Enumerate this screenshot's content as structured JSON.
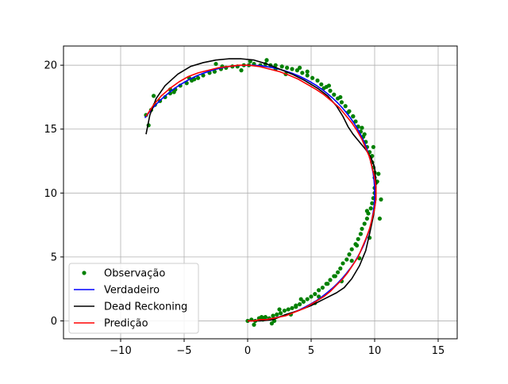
{
  "chart_data": {
    "type": "line",
    "title": "",
    "xlabel": "",
    "ylabel": "",
    "xlim": [
      -14.5,
      16.5
    ],
    "ylim": [
      -1.4,
      21.5
    ],
    "grid": true,
    "x_ticks": [
      -10,
      -5,
      0,
      5,
      10,
      15
    ],
    "y_ticks": [
      0,
      5,
      10,
      15,
      20
    ],
    "x_tick_labels": [
      "−10",
      "−5",
      "0",
      "5",
      "10",
      "15"
    ],
    "y_tick_labels": [
      "0",
      "5",
      "10",
      "15",
      "20"
    ],
    "legend_position": "lower-left",
    "colors": {
      "observation": "#008000",
      "true": "#0000ff",
      "dead_reckoning": "#000000",
      "prediction": "#ff0000"
    },
    "circle_model": {
      "center": [
        0,
        10
      ],
      "radius": 10,
      "start_angle_deg": -90,
      "end_angle_deg": 144
    },
    "series": [
      {
        "name": "Observação",
        "style": "markers",
        "color": "#008000",
        "x": [
          0.0,
          0.3,
          0.6,
          0.9,
          1.2,
          1.4,
          1.7,
          2.0,
          2.3,
          2.6,
          2.9,
          3.2,
          3.5,
          3.8,
          4.1,
          4.4,
          4.7,
          5.0,
          5.3,
          5.6,
          5.9,
          6.2,
          6.5,
          6.8,
          7.1,
          7.3,
          7.5,
          7.8,
          8.0,
          8.2,
          8.5,
          8.7,
          8.9,
          9.0,
          9.2,
          9.4,
          9.5,
          9.7,
          9.8,
          9.9,
          10.0,
          10.0,
          10.1,
          10.0,
          10.0,
          9.9,
          9.8,
          9.7,
          9.6,
          9.4,
          9.3,
          9.1,
          8.9,
          8.7,
          8.5,
          8.3,
          8.0,
          7.7,
          7.4,
          7.1,
          6.8,
          6.5,
          6.2,
          5.8,
          5.5,
          5.1,
          4.7,
          4.3,
          3.9,
          3.5,
          3.1,
          2.7,
          2.2,
          1.8,
          1.4,
          1.0,
          0.5,
          0.1,
          -0.3,
          -0.8,
          -1.2,
          -1.7,
          -2.1,
          -2.6,
          -3.0,
          -3.5,
          -3.9,
          -4.4,
          -4.8,
          -5.3,
          -5.7,
          -6.1,
          -6.5,
          -6.9,
          -7.3,
          -7.6,
          -8.0,
          0.5,
          1.1,
          1.9,
          2.5,
          3.4,
          4.2,
          5.3,
          6.3,
          7.4,
          8.2,
          8.8,
          9.6,
          10.4,
          10.5,
          10.3,
          9.8,
          9.2,
          8.3,
          7.3,
          6.0,
          4.7,
          3.0,
          1.5,
          -0.5,
          -2.5,
          -4.6,
          -6.1,
          -7.4,
          0.9,
          2.1,
          3.8,
          5.6,
          6.9,
          8.6,
          9.4,
          10.2,
          9.9,
          9.0,
          7.9,
          6.4,
          4.1,
          2.2,
          0.2,
          -2.0,
          -4.2,
          -5.8,
          -7.8
        ],
        "y": [
          0.0,
          0.1,
          0.0,
          0.2,
          0.1,
          0.3,
          0.2,
          0.4,
          0.5,
          0.6,
          0.8,
          0.9,
          1.0,
          1.2,
          1.3,
          1.5,
          1.7,
          1.9,
          2.1,
          2.4,
          2.6,
          2.9,
          3.2,
          3.5,
          3.8,
          4.1,
          4.5,
          4.8,
          5.2,
          5.6,
          6.0,
          6.4,
          6.8,
          7.2,
          7.6,
          8.0,
          8.4,
          8.8,
          9.2,
          9.6,
          10.0,
          10.4,
          10.8,
          11.2,
          11.6,
          12.0,
          12.4,
          12.8,
          13.2,
          13.6,
          14.0,
          14.4,
          14.8,
          15.2,
          15.6,
          16.0,
          16.4,
          16.8,
          17.1,
          17.4,
          17.7,
          18.0,
          18.3,
          18.5,
          18.8,
          19.0,
          19.2,
          19.4,
          19.6,
          19.7,
          19.8,
          19.9,
          20.0,
          20.0,
          20.1,
          20.0,
          20.1,
          20.0,
          20.0,
          19.9,
          19.9,
          19.8,
          19.7,
          19.5,
          19.4,
          19.2,
          19.0,
          18.8,
          18.6,
          18.4,
          18.1,
          17.8,
          17.5,
          17.2,
          16.9,
          16.5,
          16.1,
          -0.3,
          0.3,
          -0.2,
          0.9,
          0.5,
          1.7,
          1.4,
          2.9,
          3.1,
          4.7,
          4.9,
          6.5,
          8.0,
          9.5,
          11.5,
          12.9,
          14.6,
          16.0,
          17.5,
          18.2,
          19.5,
          19.3,
          20.4,
          19.6,
          20.1,
          19.0,
          18.1,
          17.6,
          0.2,
          0.0,
          1.1,
          1.9,
          3.5,
          5.9,
          8.6,
          10.9,
          13.6,
          15.1,
          16.3,
          18.4,
          19.8,
          19.7,
          20.3,
          19.9,
          18.9,
          17.9,
          15.3
        ]
      },
      {
        "name": "Verdadeiro",
        "style": "line",
        "color": "#0000ff",
        "x": [
          0.0,
          0.52,
          1.04,
          1.56,
          2.08,
          2.59,
          3.09,
          3.58,
          4.07,
          4.54,
          5.0,
          5.45,
          5.88,
          6.29,
          6.69,
          7.07,
          7.43,
          7.77,
          8.09,
          8.39,
          8.66,
          8.91,
          9.14,
          9.34,
          9.51,
          9.66,
          9.78,
          9.88,
          9.95,
          9.99,
          10.0,
          9.99,
          9.95,
          9.88,
          9.78,
          9.66,
          9.51,
          9.34,
          9.14,
          8.91,
          8.66,
          8.39,
          8.09,
          7.77,
          7.43,
          7.07,
          6.69,
          6.29,
          5.88,
          5.45,
          5.0,
          4.54,
          4.07,
          3.58,
          3.09,
          2.59,
          2.08,
          1.56,
          1.04,
          0.52,
          0.0,
          -0.52,
          -1.04,
          -1.56,
          -2.08,
          -2.59,
          -3.09,
          -3.58,
          -4.07,
          -4.54,
          -5.0,
          -5.45,
          -5.88,
          -6.29,
          -6.69,
          -7.07,
          -7.43,
          -7.77,
          -8.09
        ],
        "y": [
          0.0,
          0.01,
          0.05,
          0.12,
          0.22,
          0.34,
          0.49,
          0.66,
          0.86,
          1.09,
          1.34,
          1.61,
          1.91,
          2.23,
          2.57,
          2.93,
          3.31,
          3.71,
          4.12,
          4.55,
          5.0,
          5.46,
          5.93,
          6.42,
          6.91,
          7.41,
          7.92,
          8.44,
          8.96,
          9.48,
          10.0,
          10.52,
          11.04,
          11.56,
          12.08,
          12.59,
          13.09,
          13.58,
          14.07,
          14.54,
          15.0,
          15.45,
          15.88,
          16.29,
          16.69,
          17.07,
          17.43,
          17.77,
          18.09,
          18.39,
          18.66,
          18.91,
          19.14,
          19.34,
          19.51,
          19.66,
          19.78,
          19.88,
          19.95,
          19.99,
          20.0,
          19.99,
          19.95,
          19.88,
          19.78,
          19.66,
          19.51,
          19.34,
          19.14,
          18.91,
          18.66,
          18.39,
          18.09,
          17.77,
          17.43,
          17.07,
          16.69,
          16.29,
          15.88
        ]
      },
      {
        "name": "Dead Reckoning",
        "style": "line",
        "color": "#000000",
        "x": [
          0.0,
          1.0,
          2.0,
          3.0,
          4.0,
          5.0,
          6.0,
          7.0,
          7.6,
          8.2,
          8.8,
          9.3,
          9.6,
          9.9,
          10.1,
          10.1,
          10.0,
          9.7,
          9.3,
          8.8,
          8.3,
          7.9,
          7.5,
          7.0,
          6.3,
          5.5,
          4.5,
          3.5,
          2.5,
          1.5,
          0.5,
          -0.5,
          -1.5,
          -2.5,
          -3.5,
          -4.5,
          -5.5,
          -6.5,
          -7.2,
          -7.7,
          -8.0
        ],
        "y": [
          0.0,
          0.0,
          0.1,
          0.5,
          0.8,
          1.2,
          1.7,
          2.2,
          2.6,
          3.3,
          4.3,
          5.5,
          6.8,
          8.2,
          9.5,
          10.8,
          12.0,
          12.8,
          13.4,
          14.0,
          14.6,
          15.2,
          16.0,
          16.8,
          17.6,
          18.2,
          18.8,
          19.3,
          19.7,
          20.1,
          20.4,
          20.5,
          20.5,
          20.4,
          20.2,
          19.9,
          19.3,
          18.4,
          17.4,
          16.1,
          14.6
        ]
      },
      {
        "name": "Predição",
        "style": "line",
        "color": "#ff0000",
        "x": [
          0.0,
          0.5,
          1.0,
          1.5,
          2.0,
          2.5,
          3.0,
          3.5,
          4.0,
          4.5,
          5.0,
          5.5,
          6.0,
          6.5,
          7.0,
          7.5,
          7.9,
          8.3,
          8.7,
          9.0,
          9.3,
          9.6,
          9.8,
          10.0,
          10.1,
          10.1,
          10.0,
          9.8,
          9.6,
          9.3,
          9.0,
          8.6,
          8.2,
          7.7,
          7.2,
          6.6,
          6.0,
          5.4,
          4.7,
          4.0,
          3.3,
          2.5,
          1.7,
          0.9,
          0.1,
          -0.7,
          -1.5,
          -2.3,
          -3.1,
          -3.9,
          -4.7,
          -5.4,
          -6.1,
          -6.8,
          -7.4,
          -8.0
        ],
        "y": [
          0.0,
          0.0,
          0.1,
          0.1,
          0.2,
          0.3,
          0.4,
          0.6,
          0.8,
          1.0,
          1.3,
          1.6,
          1.9,
          2.3,
          2.8,
          3.3,
          3.8,
          4.4,
          5.0,
          5.7,
          6.4,
          7.2,
          8.0,
          8.8,
          9.6,
          10.4,
          11.2,
          12.0,
          12.8,
          13.5,
          14.2,
          14.9,
          15.5,
          16.1,
          16.7,
          17.2,
          17.7,
          18.1,
          18.5,
          18.9,
          19.2,
          19.5,
          19.7,
          19.9,
          20.0,
          20.0,
          19.9,
          19.8,
          19.6,
          19.4,
          19.1,
          18.7,
          18.2,
          17.6,
          16.9,
          16.0
        ]
      }
    ]
  }
}
